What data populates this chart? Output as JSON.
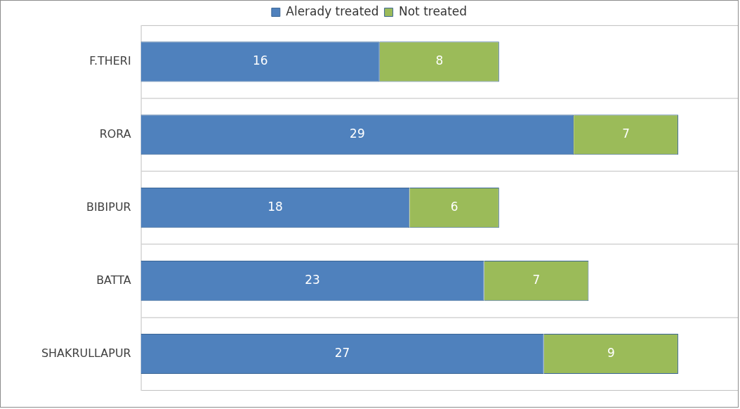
{
  "chart_data": {
    "type": "bar",
    "orientation": "horizontal",
    "stacked": true,
    "categories": [
      "F.THERI",
      "RORA",
      "BIBIPUR",
      "BATTA",
      "SHAKRULLAPUR"
    ],
    "series": [
      {
        "name": "Alerady treated",
        "color": "#4f81bd",
        "values": [
          16,
          29,
          18,
          23,
          27
        ]
      },
      {
        "name": "Not treated",
        "color": "#9bbb59",
        "values": [
          8,
          7,
          6,
          7,
          9
        ]
      }
    ],
    "xlim": [
      0,
      40
    ],
    "tick_labels": "y",
    "grid": "y",
    "legend": "top",
    "data_labels": true
  }
}
